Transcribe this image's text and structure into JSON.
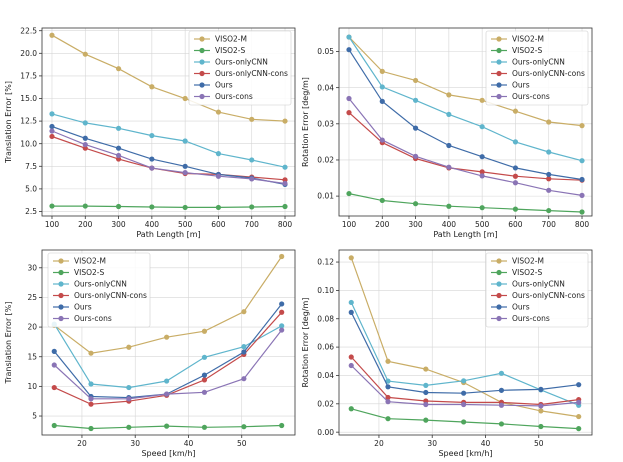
{
  "colors": {
    "VISO2-M": "#c9ad66",
    "VISO2-S": "#4fa55d",
    "Ours-onlyCNN": "#5fb5cc",
    "Ours-onlyCNN-cons": "#c44b4b",
    "Ours": "#3f6ca8",
    "Ours-cons": "#8a74b5"
  },
  "chart_data": [
    {
      "type": "line",
      "ylabel": "Translation Error [%]",
      "xlabel": "Path Length [m]",
      "xlim": [
        70,
        830
      ],
      "ylim": [
        2.0,
        22.8
      ],
      "xticks": [
        100,
        200,
        300,
        400,
        500,
        600,
        700,
        800
      ],
      "yticks": [
        2.5,
        5.0,
        7.5,
        10.0,
        12.5,
        15.0,
        17.5,
        20.0,
        22.5
      ],
      "ytick_labels": [
        "2.5",
        "5.0",
        "7.5",
        "10.0",
        "12.5",
        "15.0",
        "17.5",
        "20.0",
        "22.5"
      ],
      "legend_position": "top-right",
      "x": [
        100,
        200,
        300,
        400,
        500,
        600,
        700,
        800
      ],
      "series": [
        {
          "name": "VISO2-M",
          "values": [
            22.0,
            19.9,
            18.3,
            16.3,
            15.0,
            13.5,
            12.7,
            12.5
          ]
        },
        {
          "name": "VISO2-S",
          "values": [
            3.1,
            3.1,
            3.05,
            3.0,
            2.95,
            2.95,
            3.0,
            3.05
          ]
        },
        {
          "name": "Ours-onlyCNN",
          "values": [
            13.3,
            12.3,
            11.7,
            10.9,
            10.3,
            8.9,
            8.2,
            7.4
          ]
        },
        {
          "name": "Ours-onlyCNN-cons",
          "values": [
            10.8,
            9.5,
            8.3,
            7.3,
            6.7,
            6.6,
            6.3,
            6.0
          ]
        },
        {
          "name": "Ours",
          "values": [
            11.9,
            10.6,
            9.5,
            8.3,
            7.5,
            6.6,
            6.2,
            5.5
          ]
        },
        {
          "name": "Ours-cons",
          "values": [
            11.4,
            9.9,
            8.7,
            7.3,
            6.8,
            6.4,
            6.1,
            5.6
          ]
        }
      ]
    },
    {
      "type": "line",
      "ylabel": "Rotation Error [deg/m]",
      "xlabel": "Path Length [m]",
      "xlim": [
        70,
        830
      ],
      "ylim": [
        0.0045,
        0.0565
      ],
      "xticks": [
        100,
        200,
        300,
        400,
        500,
        600,
        700,
        800
      ],
      "yticks": [
        0.01,
        0.02,
        0.03,
        0.04,
        0.05
      ],
      "ytick_labels": [
        "0.01",
        "0.02",
        "0.03",
        "0.04",
        "0.05"
      ],
      "legend_position": "top-right",
      "x": [
        100,
        200,
        300,
        400,
        500,
        600,
        700,
        800
      ],
      "series": [
        {
          "name": "VISO2-M",
          "values": [
            0.054,
            0.0445,
            0.042,
            0.038,
            0.0365,
            0.0335,
            0.0305,
            0.0295
          ]
        },
        {
          "name": "VISO2-S",
          "values": [
            0.0107,
            0.0088,
            0.0079,
            0.0072,
            0.0068,
            0.0064,
            0.006,
            0.0056
          ]
        },
        {
          "name": "Ours-onlyCNN",
          "values": [
            0.054,
            0.0402,
            0.0365,
            0.0326,
            0.0292,
            0.025,
            0.0222,
            0.0198
          ]
        },
        {
          "name": "Ours-onlyCNN-cons",
          "values": [
            0.0331,
            0.0248,
            0.0204,
            0.0178,
            0.0167,
            0.0155,
            0.0148,
            0.0144
          ]
        },
        {
          "name": "Ours",
          "values": [
            0.0505,
            0.0362,
            0.0288,
            0.024,
            0.0209,
            0.0178,
            0.016,
            0.0146
          ]
        },
        {
          "name": "Ours-cons",
          "values": [
            0.037,
            0.0255,
            0.021,
            0.018,
            0.0156,
            0.0137,
            0.0116,
            0.0102
          ]
        }
      ]
    },
    {
      "type": "line",
      "ylabel": "Translation Error [%]",
      "xlabel": "Speed [km/h]",
      "xlim": [
        12.5,
        60.0
      ],
      "ylim": [
        1.8,
        33.0
      ],
      "xticks": [
        20,
        30,
        40,
        50
      ],
      "yticks": [
        5,
        10,
        15,
        20,
        25,
        30
      ],
      "ytick_labels": [
        "5",
        "10",
        "15",
        "20",
        "25",
        "30"
      ],
      "legend_position": "top-left",
      "x": [
        14.8,
        21.7,
        28.8,
        35.9,
        43.0,
        50.4,
        57.5
      ],
      "series": [
        {
          "name": "VISO2-M",
          "values": [
            20.3,
            15.6,
            16.6,
            18.3,
            19.3,
            22.6,
            31.9
          ]
        },
        {
          "name": "VISO2-S",
          "values": [
            3.4,
            2.9,
            3.1,
            3.3,
            3.1,
            3.2,
            3.4
          ]
        },
        {
          "name": "Ours-onlyCNN",
          "values": [
            20.5,
            10.4,
            9.8,
            10.9,
            14.9,
            16.7,
            20.2
          ]
        },
        {
          "name": "Ours-onlyCNN-cons",
          "values": [
            9.8,
            7.0,
            7.5,
            8.5,
            11.1,
            15.4,
            22.5
          ]
        },
        {
          "name": "Ours",
          "values": [
            15.9,
            8.3,
            8.1,
            8.7,
            11.9,
            15.8,
            23.9
          ]
        },
        {
          "name": "Ours-cons",
          "values": [
            13.6,
            7.9,
            7.9,
            8.7,
            9.0,
            11.3,
            19.5
          ]
        }
      ]
    },
    {
      "type": "line",
      "ylabel": "Rotation Error [deg/m]",
      "xlabel": "Speed [km/h]",
      "xlim": [
        12.5,
        60.0
      ],
      "ylim": [
        -0.002,
        0.1285
      ],
      "xticks": [
        20,
        30,
        40,
        50
      ],
      "yticks": [
        0.0,
        0.02,
        0.04,
        0.06,
        0.08,
        0.1,
        0.12
      ],
      "ytick_labels": [
        "0.00",
        "0.02",
        "0.04",
        "0.06",
        "0.08",
        "0.10",
        "0.12"
      ],
      "legend_position": "top-right",
      "x": [
        14.8,
        21.7,
        28.8,
        35.9,
        43.0,
        50.4,
        57.5
      ],
      "series": [
        {
          "name": "VISO2-M",
          "values": [
            0.123,
            0.05,
            0.0445,
            0.035,
            0.021,
            0.015,
            0.011
          ]
        },
        {
          "name": "VISO2-S",
          "values": [
            0.0165,
            0.0095,
            0.0085,
            0.0072,
            0.0058,
            0.004,
            0.0025
          ]
        },
        {
          "name": "Ours-onlyCNN",
          "values": [
            0.0915,
            0.036,
            0.033,
            0.0362,
            0.0415,
            0.0298,
            0.019
          ]
        },
        {
          "name": "Ours-onlyCNN-cons",
          "values": [
            0.053,
            0.0245,
            0.022,
            0.021,
            0.021,
            0.0195,
            0.023
          ]
        },
        {
          "name": "Ours",
          "values": [
            0.0845,
            0.032,
            0.028,
            0.0275,
            0.0295,
            0.0302,
            0.0335
          ]
        },
        {
          "name": "Ours-cons",
          "values": [
            0.047,
            0.0215,
            0.0195,
            0.0195,
            0.019,
            0.0185,
            0.021
          ]
        }
      ]
    }
  ]
}
